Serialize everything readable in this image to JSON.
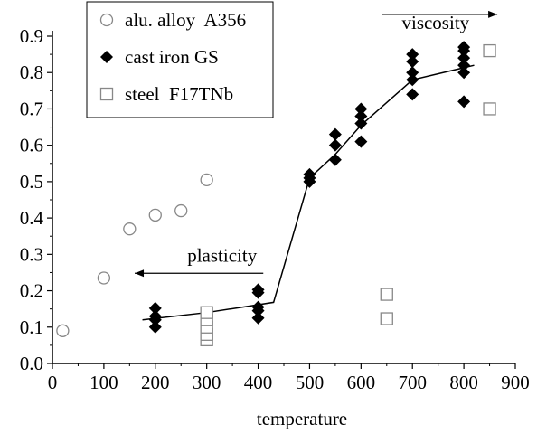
{
  "chart_data": {
    "type": "scatter",
    "title": "",
    "xlabel": "temperature",
    "ylabel": "",
    "xlim": [
      0,
      900
    ],
    "ylim": [
      0,
      0.9
    ],
    "xticks": [
      "0",
      "100",
      "200",
      "300",
      "400",
      "500",
      "600",
      "700",
      "800",
      "900"
    ],
    "yticks": [
      "0.0",
      "0.1",
      "0.2",
      "0.3",
      "0.4",
      "0.5",
      "0.6",
      "0.7",
      "0.8",
      "0.9"
    ],
    "grid": false,
    "legend_position": "top-left",
    "series": [
      {
        "name": "alu. alloy  A356",
        "marker": "circle-open",
        "color": "#888888",
        "points": [
          [
            20,
            0.09
          ],
          [
            100,
            0.235
          ],
          [
            150,
            0.37
          ],
          [
            200,
            0.408
          ],
          [
            250,
            0.42
          ],
          [
            300,
            0.505
          ]
        ]
      },
      {
        "name": "cast iron GS",
        "marker": "diamond-filled",
        "color": "#000000",
        "points": [
          [
            200,
            0.1
          ],
          [
            200,
            0.12
          ],
          [
            200,
            0.13
          ],
          [
            200,
            0.152
          ],
          [
            400,
            0.125
          ],
          [
            400,
            0.145
          ],
          [
            400,
            0.155
          ],
          [
            400,
            0.195
          ],
          [
            400,
            0.203
          ],
          [
            500,
            0.5
          ],
          [
            500,
            0.51
          ],
          [
            500,
            0.52
          ],
          [
            550,
            0.56
          ],
          [
            550,
            0.6
          ],
          [
            550,
            0.63
          ],
          [
            600,
            0.61
          ],
          [
            600,
            0.66
          ],
          [
            600,
            0.68
          ],
          [
            600,
            0.7
          ],
          [
            700,
            0.74
          ],
          [
            700,
            0.78
          ],
          [
            700,
            0.8
          ],
          [
            700,
            0.83
          ],
          [
            700,
            0.85
          ],
          [
            800,
            0.72
          ],
          [
            800,
            0.8
          ],
          [
            800,
            0.82
          ],
          [
            800,
            0.84
          ],
          [
            800,
            0.86
          ],
          [
            800,
            0.87
          ]
        ]
      },
      {
        "name": "steel  F17TNb",
        "marker": "square-open",
        "color": "#888888",
        "points": [
          [
            300,
            0.065
          ],
          [
            300,
            0.08
          ],
          [
            300,
            0.1
          ],
          [
            300,
            0.12
          ],
          [
            300,
            0.14
          ],
          [
            650,
            0.123
          ],
          [
            650,
            0.19
          ],
          [
            850,
            0.7
          ],
          [
            850,
            0.86
          ]
        ]
      }
    ],
    "trend_line": {
      "color": "#000000",
      "points": [
        [
          175,
          0.12
        ],
        [
          300,
          0.14
        ],
        [
          430,
          0.168
        ],
        [
          500,
          0.51
        ],
        [
          550,
          0.575
        ],
        [
          600,
          0.655
        ],
        [
          700,
          0.78
        ],
        [
          820,
          0.82
        ]
      ]
    },
    "annotations": [
      {
        "text": "plasticity",
        "arrow": "left",
        "label_at": [
          330,
          0.28
        ],
        "arrow_from": [
          410,
          0.248
        ],
        "arrow_to": [
          160,
          0.248
        ]
      },
      {
        "text": "viscosity",
        "arrow": "right",
        "label_at": [
          745,
          0.92
        ],
        "arrow_from": [
          640,
          0.96
        ],
        "arrow_to": [
          865,
          0.96
        ]
      }
    ]
  }
}
